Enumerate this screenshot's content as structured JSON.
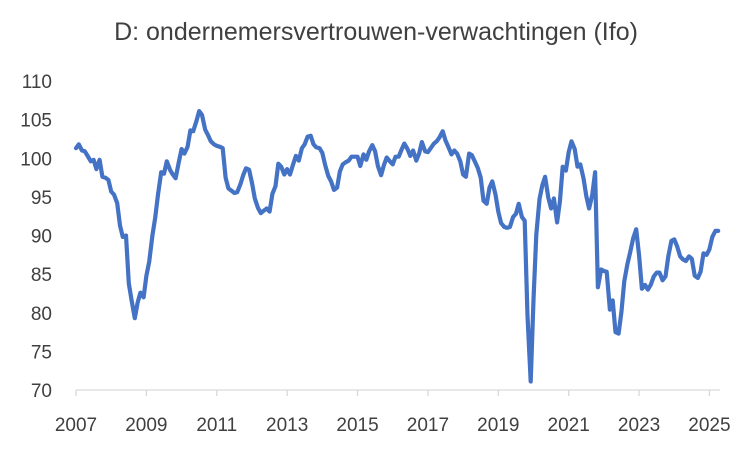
{
  "chart_data": {
    "type": "line",
    "title": "D: ondernemersvertrouwen-verwachtingen (Ifo)",
    "xlabel": "",
    "ylabel": "",
    "ylim": [
      70,
      110
    ],
    "xlim": [
      2007,
      2025.3
    ],
    "yticks": [
      70,
      75,
      80,
      85,
      90,
      95,
      100,
      105,
      110
    ],
    "xticks": [
      2007,
      2009,
      2011,
      2013,
      2015,
      2017,
      2019,
      2021,
      2023,
      2025
    ],
    "grid": false,
    "legend": "none",
    "line_color": "#4472C4",
    "series": [
      {
        "x": [
          2007.0,
          2007.08,
          2007.17,
          2007.25,
          2007.33,
          2007.42,
          2007.5,
          2007.58,
          2007.67,
          2007.75,
          2007.83,
          2007.92,
          2008.0,
          2008.08,
          2008.17,
          2008.25,
          2008.33,
          2008.42,
          2008.5,
          2008.58,
          2008.67,
          2008.75,
          2008.83,
          2008.92,
          2009.0,
          2009.08,
          2009.17,
          2009.25,
          2009.33,
          2009.42,
          2009.5,
          2009.58,
          2009.67,
          2009.75,
          2009.83,
          2009.92,
          2010.0,
          2010.08,
          2010.17,
          2010.25,
          2010.33,
          2010.42,
          2010.5,
          2010.58,
          2010.67,
          2010.75,
          2010.83,
          2010.92,
          2011.0,
          2011.08,
          2011.17,
          2011.25,
          2011.33,
          2011.42,
          2011.5,
          2011.58,
          2011.67,
          2011.75,
          2011.83,
          2011.92,
          2012.0,
          2012.08,
          2012.17,
          2012.25,
          2012.33,
          2012.42,
          2012.5,
          2012.58,
          2012.67,
          2012.75,
          2012.83,
          2012.92,
          2013.0,
          2013.08,
          2013.17,
          2013.25,
          2013.33,
          2013.42,
          2013.5,
          2013.58,
          2013.67,
          2013.75,
          2013.83,
          2013.92,
          2014.0,
          2014.08,
          2014.17,
          2014.25,
          2014.33,
          2014.42,
          2014.5,
          2014.58,
          2014.67,
          2014.75,
          2014.83,
          2014.92,
          2015.0,
          2015.08,
          2015.17,
          2015.25,
          2015.33,
          2015.42,
          2015.5,
          2015.58,
          2015.67,
          2015.75,
          2015.83,
          2015.92,
          2016.0,
          2016.08,
          2016.17,
          2016.25,
          2016.33,
          2016.42,
          2016.5,
          2016.58,
          2016.67,
          2016.75,
          2016.83,
          2016.92,
          2017.0,
          2017.08,
          2017.17,
          2017.25,
          2017.33,
          2017.42,
          2017.5,
          2017.58,
          2017.67,
          2017.75,
          2017.83,
          2017.92,
          2018.0,
          2018.08,
          2018.17,
          2018.25,
          2018.33,
          2018.42,
          2018.5,
          2018.58,
          2018.67,
          2018.75,
          2018.83,
          2018.92,
          2019.0,
          2019.08,
          2019.17,
          2019.25,
          2019.33,
          2019.42,
          2019.5,
          2019.58,
          2019.67,
          2019.75,
          2019.83,
          2019.92,
          2020.0,
          2020.08,
          2020.17,
          2020.25,
          2020.33,
          2020.42,
          2020.5,
          2020.58,
          2020.67,
          2020.75,
          2020.83,
          2020.92,
          2021.0,
          2021.08,
          2021.17,
          2021.25,
          2021.33,
          2021.42,
          2021.5,
          2021.58,
          2021.67,
          2021.75,
          2021.83,
          2021.92,
          2022.0,
          2022.08,
          2022.17,
          2022.25,
          2022.33,
          2022.42,
          2022.5,
          2022.58,
          2022.67,
          2022.75,
          2022.83,
          2022.92,
          2023.0,
          2023.08,
          2023.17,
          2023.25,
          2023.33,
          2023.42,
          2023.5,
          2023.58,
          2023.67,
          2023.75,
          2023.83,
          2023.92,
          2024.0,
          2024.08,
          2024.17,
          2024.25,
          2024.33,
          2024.42,
          2024.5,
          2024.58,
          2024.67,
          2024.75,
          2024.83,
          2024.92,
          2025.0,
          2025.08,
          2025.17,
          2025.25
        ],
        "values": [
          101.3,
          101.8,
          101.0,
          100.9,
          100.3,
          99.6,
          99.8,
          98.6,
          99.8,
          97.6,
          97.5,
          97.2,
          95.7,
          95.3,
          94.2,
          91.3,
          89.8,
          90.0,
          83.8,
          81.6,
          79.3,
          81.3,
          82.6,
          82.0,
          84.8,
          86.6,
          90.0,
          92.3,
          95.3,
          98.2,
          98.0,
          99.6,
          98.5,
          97.9,
          97.4,
          99.5,
          101.2,
          100.6,
          101.5,
          103.6,
          103.5,
          104.8,
          106.1,
          105.6,
          103.7,
          103.0,
          102.2,
          101.8,
          101.6,
          101.5,
          101.3,
          97.5,
          96.1,
          95.8,
          95.5,
          95.6,
          96.6,
          97.8,
          98.7,
          98.5,
          96.8,
          94.8,
          93.6,
          92.9,
          93.2,
          93.5,
          93.1,
          95.4,
          96.4,
          99.3,
          98.9,
          97.9,
          98.6,
          97.9,
          99.2,
          100.3,
          99.7,
          101.3,
          101.8,
          102.8,
          102.9,
          101.8,
          101.4,
          101.3,
          100.7,
          99.1,
          97.7,
          97.0,
          95.9,
          96.2,
          98.3,
          99.2,
          99.5,
          99.7,
          100.2,
          100.2,
          100.2,
          99.0,
          100.5,
          99.8,
          100.9,
          101.7,
          100.9,
          99.0,
          97.8,
          99.1,
          100.1,
          99.6,
          99.2,
          100.2,
          100.2,
          101.1,
          101.9,
          101.2,
          100.3,
          101.0,
          99.7,
          100.6,
          102.1,
          100.9,
          100.8,
          101.3,
          101.9,
          102.2,
          102.7,
          103.5,
          102.3,
          101.5,
          100.5,
          101.0,
          100.6,
          99.6,
          97.9,
          97.6,
          100.6,
          100.4,
          99.6,
          98.7,
          97.5,
          94.5,
          94.1,
          96.2,
          97.0,
          95.3,
          93.1,
          91.6,
          91.1,
          91.0,
          91.1,
          92.4,
          92.8,
          94.1,
          92.4,
          91.9,
          79.6,
          71.1,
          81.7,
          90.1,
          94.7,
          96.5,
          97.6,
          94.9,
          93.5,
          94.8,
          91.7,
          94.4,
          98.9,
          98.4,
          100.8,
          102.2,
          101.2,
          98.9,
          99.2,
          97.4,
          95.1,
          93.5,
          95.3,
          98.2,
          83.3,
          85.6,
          85.4,
          85.3,
          80.4,
          81.6,
          77.5,
          77.3,
          80.2,
          84.1,
          86.3,
          87.9,
          89.6,
          90.8,
          87.4,
          83.1,
          83.6,
          83.0,
          83.6,
          84.7,
          85.2,
          85.2,
          84.2,
          84.7,
          87.3,
          89.3,
          89.5,
          88.6,
          87.3,
          86.9,
          86.7,
          87.3,
          87.0,
          84.8,
          84.5,
          85.3,
          87.7,
          87.5,
          88.2,
          89.8,
          90.6,
          90.6
        ]
      }
    ]
  }
}
